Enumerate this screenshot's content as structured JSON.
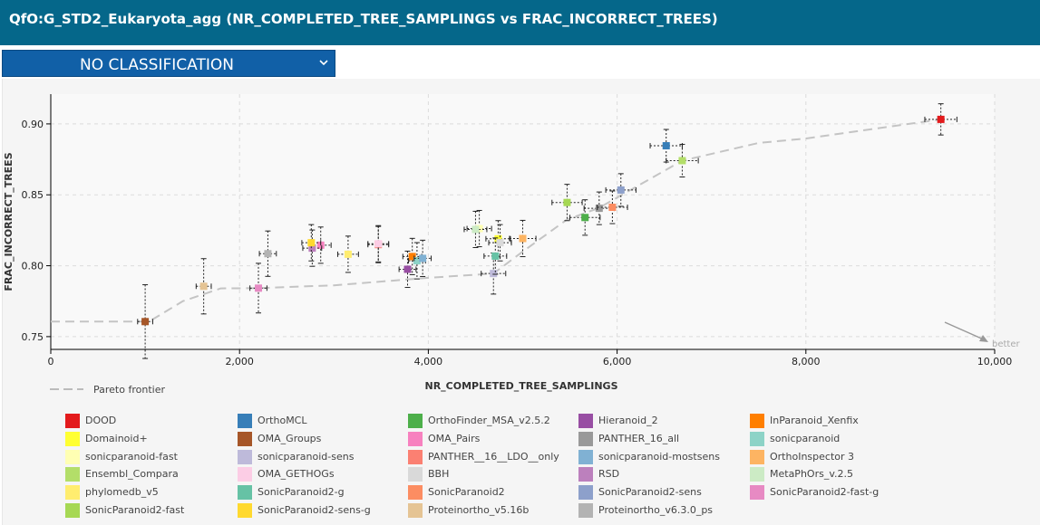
{
  "header": {
    "title": "QfO:G_STD2_Eukaryota_agg (NR_COMPLETED_TREE_SAMPLINGS vs FRAC_INCORRECT_TREES)"
  },
  "classification_select": {
    "value": "NO CLASSIFICATION"
  },
  "chart_data": {
    "type": "scatter",
    "xlabel": "NR_COMPLETED_TREE_SAMPLINGS",
    "ylabel": "FRAC_INCORRECT_TREES",
    "xlim": [
      0,
      10000
    ],
    "ylim": [
      0.741,
      0.921
    ],
    "x_ticks": [
      0,
      2000,
      4000,
      6000,
      8000,
      10000
    ],
    "x_tick_labels": [
      "0",
      "2,000",
      "4,000",
      "6,000",
      "8,000",
      "10,000"
    ],
    "y_ticks": [
      0.75,
      0.8,
      0.85,
      0.9
    ],
    "y_tick_labels": [
      "0.75",
      "0.80",
      "0.85",
      "0.90"
    ],
    "grid": true,
    "better_label": "better",
    "pareto_label": "Pareto frontier",
    "pareto_frontier": [
      [
        1000,
        0.7606
      ],
      [
        1040,
        0.7606
      ],
      [
        1400,
        0.775
      ],
      [
        1800,
        0.784
      ],
      [
        2200,
        0.7842
      ],
      [
        3000,
        0.7862
      ],
      [
        4000,
        0.7915
      ],
      [
        4690,
        0.7945
      ],
      [
        5000,
        0.81
      ],
      [
        5470,
        0.8326
      ],
      [
        5800,
        0.8405
      ],
      [
        6690,
        0.8741
      ],
      [
        7500,
        0.8866
      ],
      [
        8000,
        0.8897
      ],
      [
        9430,
        0.9032
      ]
    ],
    "points": [
      {
        "name": "DOOD",
        "color": "#e31a1c",
        "x": 9430,
        "y": 0.9032,
        "xerr": 170,
        "yerr": 0.011
      },
      {
        "name": "OrthoMCL",
        "color": "#377eb8",
        "x": 6520,
        "y": 0.8846,
        "xerr": 170,
        "yerr": 0.0115
      },
      {
        "name": "OrthoFinder_MSA_v2.5.2",
        "color": "#4daf4a",
        "x": 5660,
        "y": 0.834,
        "xerr": 160,
        "yerr": 0.0125
      },
      {
        "name": "Hieranoid_2",
        "color": "#984ea3",
        "x": 3780,
        "y": 0.7975,
        "xerr": 90,
        "yerr": 0.0128
      },
      {
        "name": "InParanoid_Xenfix",
        "color": "#ff7f00",
        "x": 3830,
        "y": 0.8065,
        "xerr": 100,
        "yerr": 0.0128
      },
      {
        "name": "Domainoid+",
        "color": "#ffff33",
        "x": 4740,
        "y": 0.819,
        "xerr": 130,
        "yerr": 0.0128
      },
      {
        "name": "OMA_Groups",
        "color": "#a65628",
        "x": 1000,
        "y": 0.7606,
        "xerr": 80,
        "yerr": 0.026
      },
      {
        "name": "OMA_Pairs",
        "color": "#f781bf",
        "x": 2860,
        "y": 0.8145,
        "xerr": 110,
        "yerr": 0.0128
      },
      {
        "name": "PANTHER_16_all",
        "color": "#999999",
        "x": 5810,
        "y": 0.8405,
        "xerr": 160,
        "yerr": 0.0115
      },
      {
        "name": "sonicparanoid",
        "color": "#8dd3c7",
        "x": 3880,
        "y": 0.8035,
        "xerr": 90,
        "yerr": 0.0128
      },
      {
        "name": "sonicparanoid-fast",
        "color": "#ffffb3",
        "x": 4540,
        "y": 0.8262,
        "xerr": 130,
        "yerr": 0.0128
      },
      {
        "name": "sonicparanoid-sens",
        "color": "#bebada",
        "x": 4690,
        "y": 0.7945,
        "xerr": 130,
        "yerr": 0.0145
      },
      {
        "name": "PANTHER__16__LDO__only",
        "color": "#fb8072",
        "x": 3470,
        "y": 0.8149,
        "xerr": 110,
        "yerr": 0.0128
      },
      {
        "name": "sonicparanoid-mostsens",
        "color": "#80b1d3",
        "x": 3940,
        "y": 0.8052,
        "xerr": 90,
        "yerr": 0.0128
      },
      {
        "name": "OrthoInspector 3",
        "color": "#fdb462",
        "x": 5000,
        "y": 0.8192,
        "xerr": 140,
        "yerr": 0.0128
      },
      {
        "name": "Ensembl_Compara",
        "color": "#b3de69",
        "x": 6690,
        "y": 0.8741,
        "xerr": 170,
        "yerr": 0.0115
      },
      {
        "name": "OMA_GETHOGs",
        "color": "#fccde5",
        "x": 3470,
        "y": 0.8155,
        "xerr": 110,
        "yerr": 0.0128
      },
      {
        "name": "BBH",
        "color": "#d9d9d9",
        "x": 4760,
        "y": 0.8162,
        "xerr": 120,
        "yerr": 0.0128
      },
      {
        "name": "RSD",
        "color": "#bc80bd",
        "x": 2770,
        "y": 0.8124,
        "xerr": 100,
        "yerr": 0.0128
      },
      {
        "name": "MetaPhOrs_v.2.5",
        "color": "#ccebc5",
        "x": 4500,
        "y": 0.8256,
        "xerr": 120,
        "yerr": 0.0128
      },
      {
        "name": "phylomedb_v5",
        "color": "#ffed6f",
        "x": 3150,
        "y": 0.8081,
        "xerr": 110,
        "yerr": 0.0128
      },
      {
        "name": "SonicParanoid2-g",
        "color": "#66c2a5",
        "x": 4710,
        "y": 0.8068,
        "xerr": 120,
        "yerr": 0.0128
      },
      {
        "name": "SonicParanoid2",
        "color": "#fc8d62",
        "x": 5950,
        "y": 0.8412,
        "xerr": 160,
        "yerr": 0.0115
      },
      {
        "name": "SonicParanoid2-sens",
        "color": "#8da0cb",
        "x": 6040,
        "y": 0.8534,
        "xerr": 160,
        "yerr": 0.0115
      },
      {
        "name": "SonicParanoid2-fast-g",
        "color": "#e78ac3",
        "x": 2200,
        "y": 0.7842,
        "xerr": 90,
        "yerr": 0.0175
      },
      {
        "name": "SonicParanoid2-fast",
        "color": "#a6d854",
        "x": 5470,
        "y": 0.8446,
        "xerr": 160,
        "yerr": 0.0128
      },
      {
        "name": "SonicParanoid2-sens-g",
        "color": "#ffd92f",
        "x": 2760,
        "y": 0.8162,
        "xerr": 100,
        "yerr": 0.0128
      },
      {
        "name": "Proteinortho_v5.16b",
        "color": "#e5c494",
        "x": 1620,
        "y": 0.7855,
        "xerr": 80,
        "yerr": 0.0195
      },
      {
        "name": "Proteinortho_v6.3.0_ps",
        "color": "#b3b3b3",
        "x": 2300,
        "y": 0.8085,
        "xerr": 90,
        "yerr": 0.016
      }
    ]
  },
  "legend": {
    "items": [
      {
        "label": "DOOD",
        "color": "#e31a1c"
      },
      {
        "label": "OrthoMCL",
        "color": "#377eb8"
      },
      {
        "label": "OrthoFinder_MSA_v2.5.2",
        "color": "#4daf4a"
      },
      {
        "label": "Hieranoid_2",
        "color": "#984ea3"
      },
      {
        "label": "InParanoid_Xenfix",
        "color": "#ff7f00"
      },
      {
        "label": "Domainoid+",
        "color": "#ffff33"
      },
      {
        "label": "OMA_Groups",
        "color": "#a65628"
      },
      {
        "label": "OMA_Pairs",
        "color": "#f781bf"
      },
      {
        "label": "PANTHER_16_all",
        "color": "#999999"
      },
      {
        "label": "sonicparanoid",
        "color": "#8dd3c7"
      },
      {
        "label": "sonicparanoid-fast",
        "color": "#ffffb3"
      },
      {
        "label": "sonicparanoid-sens",
        "color": "#bebada"
      },
      {
        "label": "PANTHER__16__LDO__only",
        "color": "#fb8072"
      },
      {
        "label": "sonicparanoid-mostsens",
        "color": "#80b1d3"
      },
      {
        "label": "OrthoInspector 3",
        "color": "#fdb462"
      },
      {
        "label": "Ensembl_Compara",
        "color": "#b3de69"
      },
      {
        "label": "OMA_GETHOGs",
        "color": "#fccde5"
      },
      {
        "label": "BBH",
        "color": "#d9d9d9"
      },
      {
        "label": "RSD",
        "color": "#bc80bd"
      },
      {
        "label": "MetaPhOrs_v.2.5",
        "color": "#ccebc5"
      },
      {
        "label": "phylomedb_v5",
        "color": "#ffed6f"
      },
      {
        "label": "SonicParanoid2-g",
        "color": "#66c2a5"
      },
      {
        "label": "SonicParanoid2",
        "color": "#fc8d62"
      },
      {
        "label": "SonicParanoid2-sens",
        "color": "#8da0cb"
      },
      {
        "label": "SonicParanoid2-fast-g",
        "color": "#e78ac3"
      },
      {
        "label": "SonicParanoid2-fast",
        "color": "#a6d854"
      },
      {
        "label": "SonicParanoid2-sens-g",
        "color": "#ffd92f"
      },
      {
        "label": "Proteinortho_v5.16b",
        "color": "#e5c494"
      },
      {
        "label": "Proteinortho_v6.3.0_ps",
        "color": "#b3b3b3"
      }
    ]
  }
}
